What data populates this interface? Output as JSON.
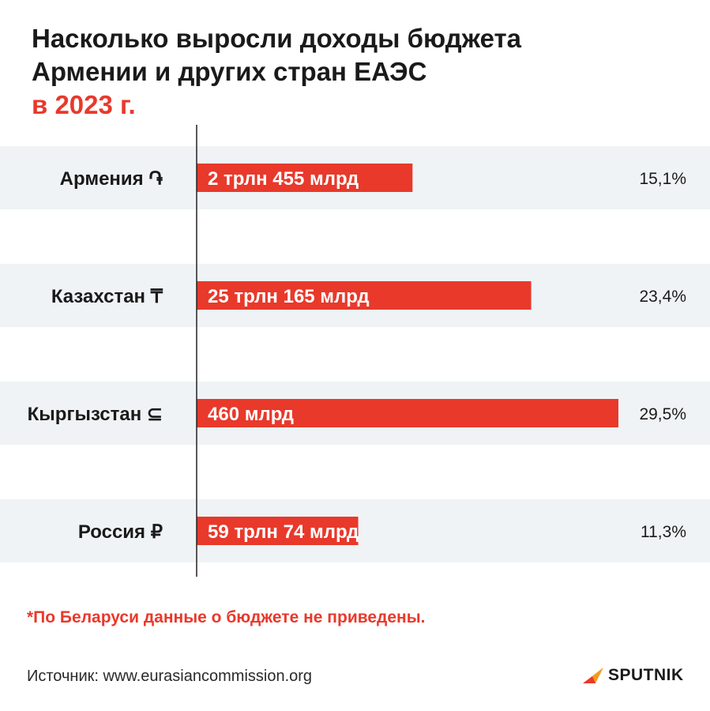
{
  "title": {
    "line1": "Насколько выросли доходы бюджета",
    "line2": "Армении и других стран ЕАЭС",
    "line3": "в 2023 г."
  },
  "colors": {
    "bar": "#e8392b",
    "band": "#eff3f5",
    "text": "#1a1a1a",
    "accent": "#e8392b"
  },
  "chart_data": {
    "type": "bar",
    "orientation": "horizontal",
    "categories": [
      "Армения ֏",
      "Казахстан ₸",
      "Кыргызстан ⊆",
      "Россия ₽"
    ],
    "bar_labels": [
      "2 трлн 455 млрд",
      "25 трлн 165 млрд",
      "460 млрд",
      "59 трлн 74 млрд"
    ],
    "growth_labels": [
      "15,1%",
      "23,4%",
      "29,5%",
      "11,3%"
    ],
    "values": [
      15.1,
      23.4,
      29.5,
      11.3
    ],
    "xlim": [
      0,
      29.5
    ],
    "grid": false
  },
  "footnote": "*По Беларуси данные о бюджете не приведены.",
  "source": "Источник: www.eurasiancommission.org",
  "logo": {
    "text": "SPUTNIK",
    "icon": "sputnik-logo-icon"
  }
}
